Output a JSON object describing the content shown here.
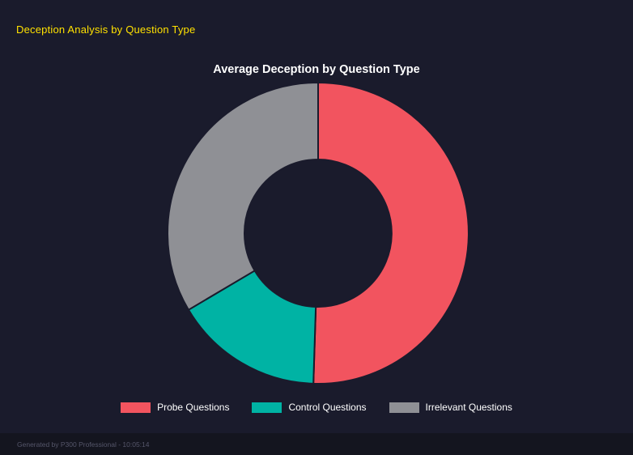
{
  "header": {
    "title": "Deception Analysis by Question Type"
  },
  "chart_data": {
    "type": "pie",
    "subtype": "donut",
    "title": "Average Deception by Question Type",
    "labels": [
      "Probe Questions",
      "Control Questions",
      "Irrelevant Questions"
    ],
    "values": [
      50.5,
      16.0,
      33.5
    ],
    "unit": "percent_share_estimated_from_arc_angles",
    "colors": [
      "#f2545f",
      "#00b3a4",
      "#8f9095"
    ],
    "legend_position": "bottom",
    "donut_hole_ratio": 0.49,
    "start_angle_deg": 0,
    "direction": "clockwise",
    "segment_border_width": 2
  },
  "footer": {
    "text": "Generated by P300 Professional - 10:05:14"
  },
  "theme": {
    "background": "#1a1b2c",
    "footer_background": "#14151f",
    "header_title_color": "#ffe100",
    "chart_title_color": "#ffffff",
    "legend_text_color": "#ffffff",
    "footer_text_color": "#55566a"
  }
}
